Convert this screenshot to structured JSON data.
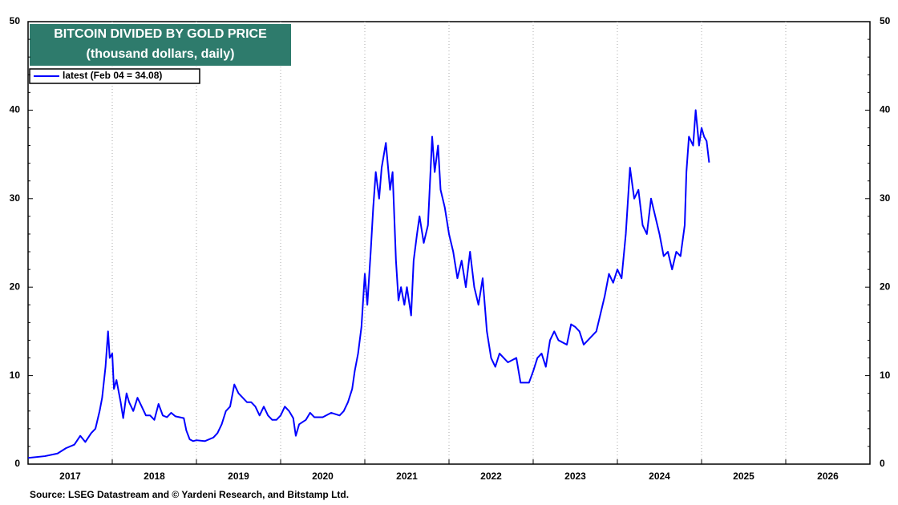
{
  "chart_data": {
    "type": "line",
    "title": "BITCOIN DIVIDED BY GOLD PRICE",
    "subtitle": "(thousand dollars, daily)",
    "source": "Source: LSEG Datastream and © Yardeni Research, and Bitstamp Ltd.",
    "xlim": [
      2017,
      2027
    ],
    "xticks": [
      {
        "value": 2017.5,
        "label": "2017"
      },
      {
        "value": 2018.5,
        "label": "2018"
      },
      {
        "value": 2019.5,
        "label": "2019"
      },
      {
        "value": 2020.5,
        "label": "2020"
      },
      {
        "value": 2021.5,
        "label": "2021"
      },
      {
        "value": 2022.5,
        "label": "2022"
      },
      {
        "value": 2023.5,
        "label": "2023"
      },
      {
        "value": 2024.5,
        "label": "2024"
      },
      {
        "value": 2025.5,
        "label": "2025"
      },
      {
        "value": 2026.5,
        "label": "2026"
      }
    ],
    "ylim": [
      0,
      50
    ],
    "yticks": [
      0,
      10,
      20,
      30,
      40,
      50
    ],
    "grid": true,
    "legend": "top-left",
    "x": [
      2017.0,
      2017.2,
      2017.35,
      2017.45,
      2017.55,
      2017.62,
      2017.68,
      2017.75,
      2017.8,
      2017.85,
      2017.88,
      2017.92,
      2017.95,
      2017.97,
      2018.0,
      2018.02,
      2018.05,
      2018.1,
      2018.13,
      2018.17,
      2018.2,
      2018.25,
      2018.3,
      2018.35,
      2018.4,
      2018.45,
      2018.5,
      2018.55,
      2018.6,
      2018.65,
      2018.7,
      2018.75,
      2018.8,
      2018.85,
      2018.88,
      2018.92,
      2018.96,
      2019.0,
      2019.1,
      2019.2,
      2019.25,
      2019.3,
      2019.35,
      2019.4,
      2019.45,
      2019.5,
      2019.55,
      2019.6,
      2019.65,
      2019.7,
      2019.75,
      2019.8,
      2019.85,
      2019.9,
      2019.95,
      2020.0,
      2020.05,
      2020.1,
      2020.15,
      2020.18,
      2020.22,
      2020.3,
      2020.35,
      2020.4,
      2020.5,
      2020.6,
      2020.7,
      2020.75,
      2020.8,
      2020.85,
      2020.88,
      2020.92,
      2020.96,
      2021.0,
      2021.03,
      2021.07,
      2021.1,
      2021.13,
      2021.17,
      2021.2,
      2021.25,
      2021.3,
      2021.33,
      2021.37,
      2021.4,
      2021.43,
      2021.47,
      2021.5,
      2021.55,
      2021.58,
      2021.62,
      2021.65,
      2021.7,
      2021.75,
      2021.8,
      2021.83,
      2021.87,
      2021.9,
      2021.95,
      2022.0,
      2022.05,
      2022.1,
      2022.15,
      2022.2,
      2022.25,
      2022.3,
      2022.35,
      2022.4,
      2022.45,
      2022.5,
      2022.55,
      2022.6,
      2022.65,
      2022.7,
      2022.8,
      2022.85,
      2022.95,
      2023.0,
      2023.05,
      2023.1,
      2023.15,
      2023.2,
      2023.25,
      2023.3,
      2023.4,
      2023.45,
      2023.5,
      2023.55,
      2023.6,
      2023.7,
      2023.75,
      2023.8,
      2023.85,
      2023.9,
      2023.95,
      2024.0,
      2024.05,
      2024.1,
      2024.15,
      2024.2,
      2024.25,
      2024.3,
      2024.35,
      2024.4,
      2024.45,
      2024.5,
      2024.55,
      2024.6,
      2024.65,
      2024.7,
      2024.75,
      2024.8,
      2024.82,
      2024.85,
      2024.9,
      2024.93,
      2024.97,
      2025.0,
      2025.03,
      2025.06,
      2025.09
    ],
    "series": [
      {
        "name": "latest (Feb 04 = 34.08)",
        "color": "#0000ff",
        "values": [
          0.7,
          0.9,
          1.2,
          1.8,
          2.2,
          3.2,
          2.5,
          3.5,
          4.0,
          6.0,
          7.5,
          11,
          15,
          12,
          12.5,
          8.5,
          9.5,
          7,
          5.2,
          8,
          7,
          6,
          7.5,
          6.5,
          5.5,
          5.5,
          5.0,
          6.8,
          5.5,
          5.3,
          5.8,
          5.4,
          5.3,
          5.2,
          3.8,
          2.8,
          2.6,
          2.7,
          2.6,
          3.0,
          3.5,
          4.5,
          6.0,
          6.5,
          9.0,
          8.0,
          7.5,
          7.0,
          7.0,
          6.5,
          5.5,
          6.5,
          5.5,
          5.0,
          5.0,
          5.5,
          6.5,
          6.0,
          5.2,
          3.2,
          4.5,
          5.0,
          5.8,
          5.3,
          5.3,
          5.8,
          5.5,
          6.0,
          7.0,
          8.5,
          10.5,
          12.5,
          15.5,
          21.5,
          18,
          24,
          29,
          33,
          30,
          33.5,
          36.3,
          31,
          33,
          23,
          18.5,
          20,
          18,
          20,
          16.8,
          23,
          26,
          28,
          25,
          27,
          37,
          33,
          36,
          31,
          29,
          26,
          24,
          21,
          23,
          20,
          24,
          20,
          18,
          21,
          15,
          12,
          11,
          12.5,
          12,
          11.5,
          12.0,
          9.2,
          9.2,
          10.5,
          12,
          12.5,
          11,
          14,
          15,
          14,
          13.5,
          15.8,
          15.5,
          15.0,
          13.5,
          14.5,
          15,
          17,
          19,
          21.5,
          20.5,
          22,
          21,
          26,
          33.5,
          30,
          31,
          27,
          26,
          30,
          28,
          26,
          23.5,
          24,
          22,
          24,
          23.5,
          27,
          33,
          37,
          36,
          40,
          36,
          38,
          37,
          36.5,
          34.08
        ]
      }
    ]
  }
}
